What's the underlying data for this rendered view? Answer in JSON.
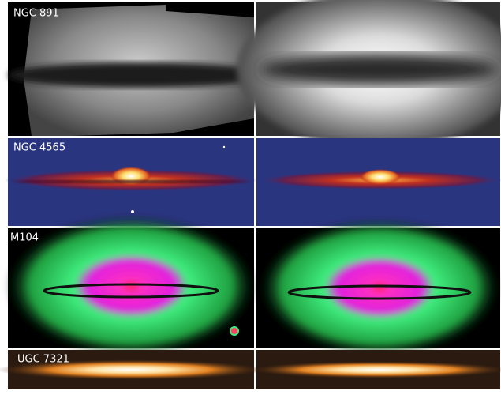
{
  "panels": [
    {
      "label": "NGC 891"
    },
    {
      "label": "NGC 4565"
    },
    {
      "label": "M104"
    },
    {
      "label": "UGC 7321"
    }
  ]
}
